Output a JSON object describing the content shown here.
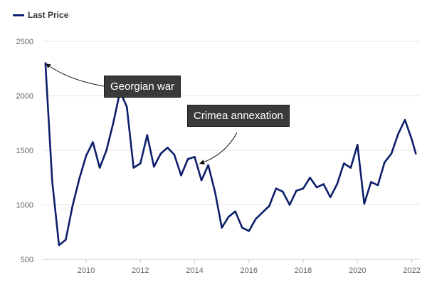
{
  "chart_data": {
    "type": "line",
    "legend": {
      "label": "Last Price",
      "placement": "top-left"
    },
    "series": [
      {
        "name": "Last Price",
        "color": "#0d1f6b",
        "x": [
          2008.5,
          2008.75,
          2009.0,
          2009.25,
          2009.5,
          2009.75,
          2010.0,
          2010.25,
          2010.5,
          2010.75,
          2011.0,
          2011.25,
          2011.5,
          2011.75,
          2012.0,
          2012.25,
          2012.5,
          2012.75,
          2013.0,
          2013.25,
          2013.5,
          2013.75,
          2014.0,
          2014.25,
          2014.5,
          2014.75,
          2015.0,
          2015.25,
          2015.5,
          2015.75,
          2016.0,
          2016.25,
          2016.5,
          2016.75,
          2017.0,
          2017.25,
          2017.5,
          2017.75,
          2018.0,
          2018.25,
          2018.5,
          2018.75,
          2019.0,
          2019.25,
          2019.5,
          2019.75,
          2020.0,
          2020.25,
          2020.5,
          2020.75,
          2021.0,
          2021.25,
          2021.5,
          2021.75,
          2022.0,
          2022.15
        ],
        "values": [
          2300,
          1220,
          630,
          680,
          990,
          1240,
          1450,
          1575,
          1340,
          1500,
          1750,
          2040,
          1900,
          1340,
          1380,
          1640,
          1350,
          1470,
          1525,
          1460,
          1270,
          1420,
          1440,
          1225,
          1365,
          1120,
          790,
          890,
          940,
          790,
          760,
          870,
          930,
          990,
          1150,
          1120,
          1000,
          1130,
          1150,
          1250,
          1160,
          1190,
          1070,
          1190,
          1380,
          1340,
          1550,
          1010,
          1210,
          1180,
          1390,
          1470,
          1650,
          1780,
          1600,
          1470
        ]
      }
    ],
    "xlim": [
      2008.4,
      2022.3
    ],
    "ylim": [
      500,
      2500
    ],
    "x_ticks": [
      "2010",
      "2012",
      "2014",
      "2016",
      "2018",
      "2020",
      "2022"
    ],
    "x_tick_values": [
      2010,
      2012,
      2014,
      2016,
      2018,
      2020,
      2022
    ],
    "y_ticks": [
      "2500",
      "2000",
      "1500",
      "1000",
      "500"
    ],
    "y_tick_values": [
      2500,
      2000,
      1500,
      1000,
      500
    ],
    "grid": "horizontal",
    "annotations": [
      {
        "label": "Georgian war",
        "x": 2008.5,
        "y": 2300
      },
      {
        "label": "Crimea annexation",
        "x": 2014.3,
        "y": 1360
      }
    ]
  }
}
